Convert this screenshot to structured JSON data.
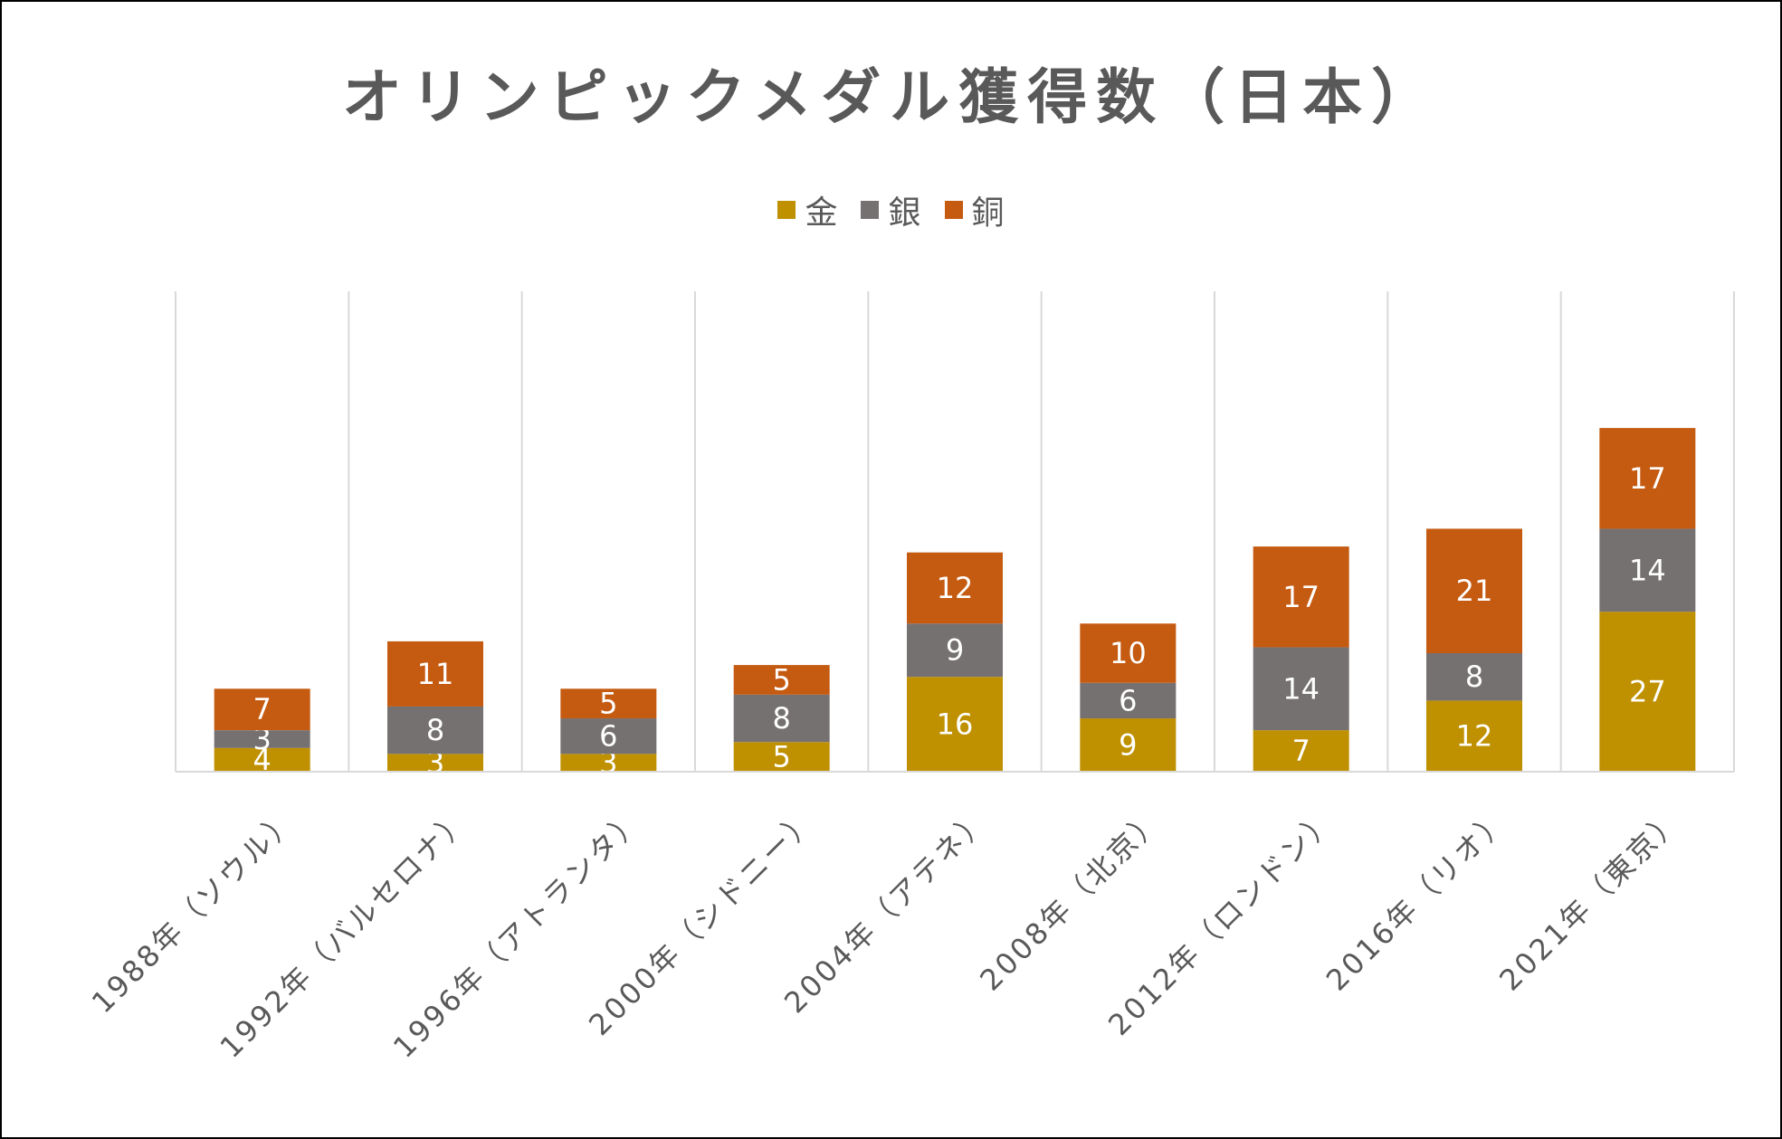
{
  "chart_data": {
    "type": "bar",
    "stacked": true,
    "title": "オリンピックメダル獲得数（日本）",
    "categories": [
      "1988年（ソウル）",
      "1992年（バルセロナ）",
      "1996年（アトランタ）",
      "2000年（シドニー）",
      "2004年（アテネ）",
      "2008年（北京）",
      "2012年（ロンドン）",
      "2016年（リオ）",
      "2021年（東京）"
    ],
    "series": [
      {
        "name": "金",
        "color": "#bf9000",
        "values": [
          4,
          3,
          3,
          5,
          16,
          9,
          7,
          12,
          27
        ]
      },
      {
        "name": "銀",
        "color": "#767171",
        "values": [
          3,
          8,
          6,
          8,
          9,
          6,
          14,
          8,
          14
        ]
      },
      {
        "name": "銅",
        "color": "#c55a11",
        "values": [
          7,
          11,
          5,
          5,
          12,
          10,
          17,
          21,
          17
        ]
      }
    ],
    "ylim": [
      0,
      70
    ],
    "legend": "top",
    "grid": "vertical-separators",
    "data_labels": true
  }
}
